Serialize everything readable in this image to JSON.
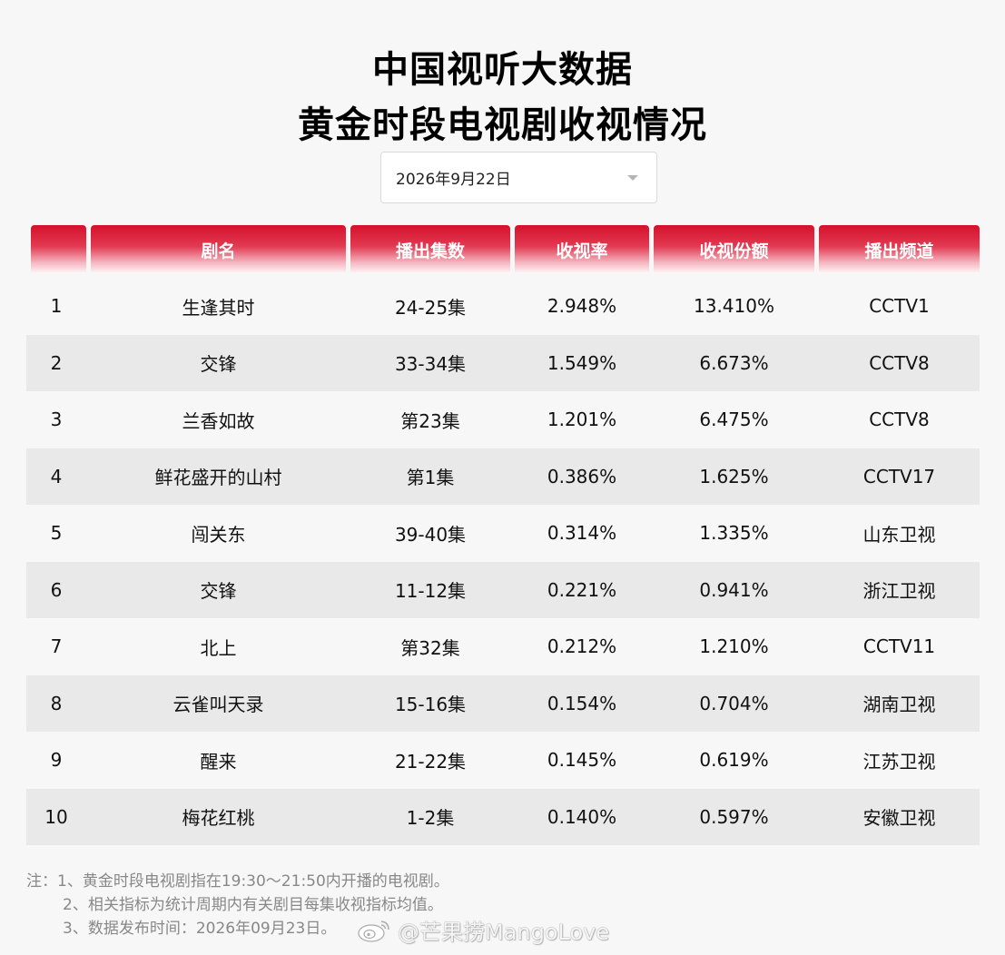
{
  "header": {
    "title_line1": "中国视听大数据",
    "title_line2": "黄金时段电视剧收视情况"
  },
  "date_selector": {
    "value": "2026年9月22日"
  },
  "table": {
    "columns": [
      "",
      "剧名",
      "播出集数",
      "收视率",
      "收视份额",
      "播出频道"
    ],
    "rows": [
      {
        "rank": "1",
        "name": "生逢其时",
        "episodes": "24-25集",
        "rating": "2.948%",
        "share": "13.410%",
        "channel": "CCTV1"
      },
      {
        "rank": "2",
        "name": "交锋",
        "episodes": "33-34集",
        "rating": "1.549%",
        "share": "6.673%",
        "channel": "CCTV8"
      },
      {
        "rank": "3",
        "name": "兰香如故",
        "episodes": "第23集",
        "rating": "1.201%",
        "share": "6.475%",
        "channel": "CCTV8"
      },
      {
        "rank": "4",
        "name": "鲜花盛开的山村",
        "episodes": "第1集",
        "rating": "0.386%",
        "share": "1.625%",
        "channel": "CCTV17"
      },
      {
        "rank": "5",
        "name": "闯关东",
        "episodes": "39-40集",
        "rating": "0.314%",
        "share": "1.335%",
        "channel": "山东卫视"
      },
      {
        "rank": "6",
        "name": "交锋",
        "episodes": "11-12集",
        "rating": "0.221%",
        "share": "0.941%",
        "channel": "浙江卫视"
      },
      {
        "rank": "7",
        "name": "北上",
        "episodes": "第32集",
        "rating": "0.212%",
        "share": "1.210%",
        "channel": "CCTV11"
      },
      {
        "rank": "8",
        "name": "云雀叫天录",
        "episodes": "15-16集",
        "rating": "0.154%",
        "share": "0.704%",
        "channel": "湖南卫视"
      },
      {
        "rank": "9",
        "name": "醒来",
        "episodes": "21-22集",
        "rating": "0.145%",
        "share": "0.619%",
        "channel": "江苏卫视"
      },
      {
        "rank": "10",
        "name": "梅花红桃",
        "episodes": "1-2集",
        "rating": "0.140%",
        "share": "0.597%",
        "channel": "安徽卫视"
      }
    ]
  },
  "notes": {
    "line1": "注：1、黄金时段电视剧指在19:30～21:50内开播的电视剧。",
    "line2": "2、相关指标为统计周期内有关剧目每集收视指标均值。",
    "line3": "3、数据发布时间：2026年09月23日。"
  },
  "watermark": {
    "text": "@芒果捞MangoLove",
    "icon": "weibo-icon"
  },
  "colors": {
    "header_red": "#d5102c",
    "row_alt": "#e9e9e9",
    "background": "#f7f7f7"
  }
}
